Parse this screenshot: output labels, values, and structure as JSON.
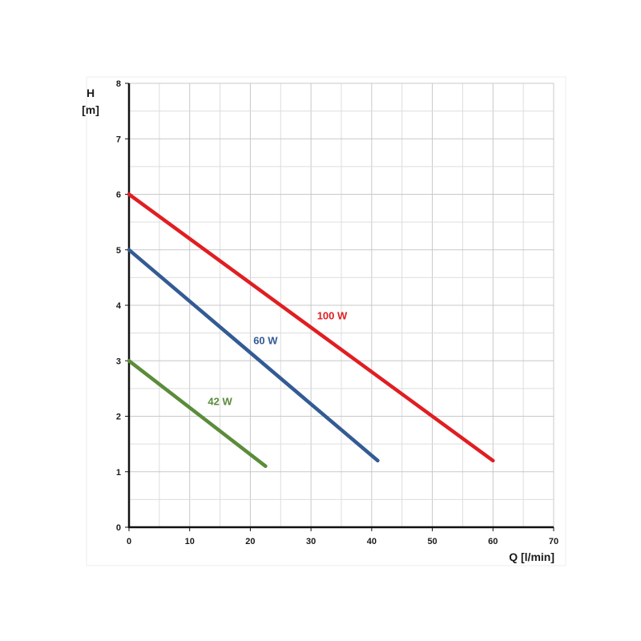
{
  "chart_data": {
    "type": "line",
    "xlabel": "Q [l/min]",
    "ylabel_line1": "H",
    "ylabel_line2": "[m]",
    "xlim": [
      0,
      70
    ],
    "ylim": [
      0,
      8
    ],
    "x_ticks": [
      "0",
      "10",
      "20",
      "30",
      "40",
      "50",
      "60",
      "70"
    ],
    "y_ticks": [
      "0",
      "1",
      "2",
      "3",
      "4",
      "5",
      "6",
      "7",
      "8"
    ],
    "grid": true,
    "series": [
      {
        "name": "100 W",
        "color": "#e01e22",
        "points": [
          [
            0,
            6.0
          ],
          [
            60,
            1.2
          ]
        ]
      },
      {
        "name": "60 W",
        "color": "#335b94",
        "points": [
          [
            0,
            5.0
          ],
          [
            41,
            1.2
          ]
        ]
      },
      {
        "name": "42 W",
        "color": "#5b8c3a",
        "points": [
          [
            0,
            3.0
          ],
          [
            22.5,
            1.1
          ]
        ]
      }
    ]
  }
}
